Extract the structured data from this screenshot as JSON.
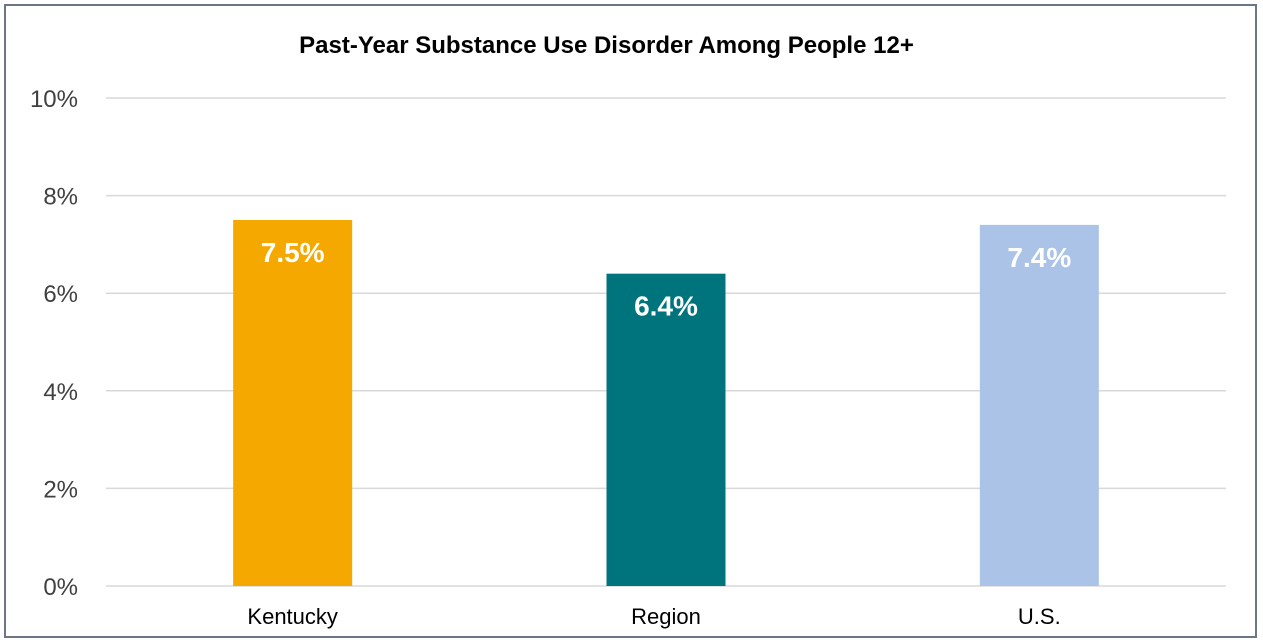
{
  "chart_data": {
    "type": "bar",
    "title": "Past-Year Substance Use Disorder Among People 12+",
    "categories": [
      "Kentucky",
      "Region",
      "U.S."
    ],
    "values": [
      7.5,
      6.4,
      7.4
    ],
    "data_labels": [
      "7.5%",
      "6.4%",
      "7.4%"
    ],
    "colors": [
      "#f5a800",
      "#00747c",
      "#aac3e6"
    ],
    "ylim": [
      0,
      10
    ],
    "yticks": [
      0,
      2,
      4,
      6,
      8,
      10
    ],
    "ytick_labels": [
      "0%",
      "2%",
      "4%",
      "6%",
      "8%",
      "10%"
    ],
    "xlabel": "",
    "ylabel": "",
    "grid": true,
    "legend": "none"
  }
}
